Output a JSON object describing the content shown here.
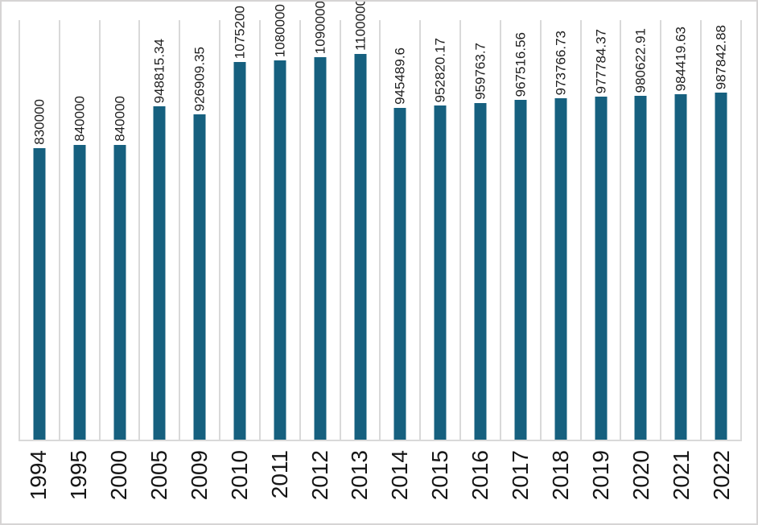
{
  "chart_data": {
    "type": "bar",
    "title": "",
    "xlabel": "",
    "ylabel": "",
    "categories": [
      "1994",
      "1995",
      "2000",
      "2005",
      "2009",
      "2010",
      "2011",
      "2012",
      "2013",
      "2014",
      "2015",
      "2016",
      "2017",
      "2018",
      "2019",
      "2020",
      "2021",
      "2022"
    ],
    "values": [
      830000,
      840000,
      840000,
      948815.34,
      926909.35,
      1075200,
      1080000,
      1090000,
      1100000,
      945489.6,
      952820.17,
      959763.7,
      967516.56,
      973766.73,
      977784.37,
      980622.91,
      984419.63,
      987842.88
    ],
    "value_labels": [
      "830000",
      "840000",
      "840000",
      "948815.34",
      "926909.35",
      "1075200",
      "1080000",
      "1090000",
      "1100000",
      "945489.6",
      "952820.17",
      "959763.7",
      "967516.56",
      "973766.73",
      "977784.37",
      "980622.91",
      "984419.63",
      "987842.88"
    ],
    "ylim": [
      0,
      1200000
    ],
    "grid": "vertical-category-boundaries-only",
    "legend": "none",
    "value_label_rotation_deg": 90,
    "x_label_rotation_deg": 90,
    "colors": {
      "bar": "#16607f",
      "gridline": "#d9d9d9",
      "axis_line": "#d9d9d9",
      "frame_border": "#d6d4d4",
      "label_text": "#1f1f1f",
      "tick_text": "#171717",
      "background": "#ffffff"
    }
  }
}
